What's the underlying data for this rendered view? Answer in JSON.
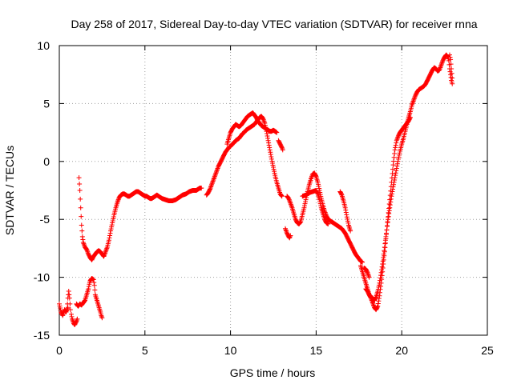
{
  "chart_data": {
    "type": "scatter",
    "title": "Day 258 of 2017, Sidereal Day-to-day VTEC variation (SDTVAR) for receiver rnna",
    "xlabel": "GPS time / hours",
    "ylabel": "SDTVAR / TECUs",
    "xlim": [
      0,
      25
    ],
    "ylim": [
      -15,
      10
    ],
    "xticks": [
      0,
      5,
      10,
      15,
      20,
      25
    ],
    "yticks": [
      -15,
      -10,
      -5,
      0,
      5,
      10
    ],
    "xtick_labels": [
      "0",
      "5",
      "10",
      "15",
      "20",
      "25"
    ],
    "ytick_labels": [
      "-15",
      "-10",
      "-5",
      "0",
      "5",
      "10"
    ],
    "grid": true,
    "marker": "+",
    "color": "#ff0000",
    "segments": [
      [
        [
          0.0,
          -12.3
        ],
        [
          0.1,
          -13.0
        ],
        [
          0.2,
          -13.3
        ],
        [
          0.3,
          -12.8
        ],
        [
          0.4,
          -13.0
        ],
        [
          0.5,
          -12.6
        ]
      ],
      [
        [
          0.45,
          -12.8
        ],
        [
          0.5,
          -11.8
        ],
        [
          0.55,
          -11.2
        ],
        [
          0.6,
          -11.8
        ],
        [
          0.65,
          -12.8
        ]
      ],
      [
        [
          0.7,
          -13.2
        ],
        [
          0.75,
          -13.6
        ],
        [
          0.8,
          -13.8
        ],
        [
          0.85,
          -14.0
        ],
        [
          0.9,
          -14.1
        ],
        [
          1.0,
          -13.8
        ],
        [
          1.05,
          -13.6
        ]
      ],
      [
        [
          1.0,
          -12.3
        ],
        [
          1.1,
          -12.5
        ],
        [
          1.2,
          -12.3
        ],
        [
          1.3,
          -12.4
        ],
        [
          1.4,
          -12.2
        ],
        [
          1.5,
          -12.0
        ],
        [
          1.6,
          -11.5
        ],
        [
          1.7,
          -11.0
        ],
        [
          1.75,
          -10.6
        ],
        [
          1.8,
          -10.3
        ],
        [
          1.9,
          -10.1
        ],
        [
          2.0,
          -10.2
        ],
        [
          2.05,
          -10.7
        ],
        [
          2.1,
          -11.5
        ],
        [
          2.2,
          -12.0
        ],
        [
          2.3,
          -12.5
        ],
        [
          2.4,
          -13.0
        ],
        [
          2.45,
          -13.3
        ],
        [
          2.5,
          -13.5
        ]
      ],
      [
        [
          1.15,
          -1.4
        ],
        [
          1.2,
          -2.5
        ],
        [
          1.25,
          -4.0
        ],
        [
          1.3,
          -5.5
        ],
        [
          1.35,
          -6.5
        ],
        [
          1.4,
          -7.0
        ],
        [
          1.5,
          -7.4
        ],
        [
          1.6,
          -7.6
        ],
        [
          1.7,
          -8.0
        ],
        [
          1.8,
          -8.3
        ],
        [
          1.9,
          -8.5
        ],
        [
          2.0,
          -8.2
        ],
        [
          2.1,
          -8.0
        ],
        [
          2.2,
          -7.8
        ],
        [
          2.3,
          -7.7
        ],
        [
          2.4,
          -7.8
        ],
        [
          2.5,
          -8.0
        ],
        [
          2.6,
          -8.2
        ],
        [
          2.7,
          -7.8
        ],
        [
          2.8,
          -7.4
        ],
        [
          2.9,
          -6.8
        ],
        [
          3.0,
          -6.0
        ],
        [
          3.1,
          -5.3
        ],
        [
          3.2,
          -4.6
        ],
        [
          3.3,
          -4.0
        ],
        [
          3.4,
          -3.5
        ],
        [
          3.5,
          -3.1
        ],
        [
          3.6,
          -2.9
        ],
        [
          3.7,
          -2.8
        ],
        [
          3.8,
          -2.8
        ],
        [
          3.9,
          -2.9
        ],
        [
          4.0,
          -3.0
        ],
        [
          4.1,
          -3.0
        ],
        [
          4.2,
          -2.9
        ],
        [
          4.3,
          -2.8
        ],
        [
          4.4,
          -2.7
        ],
        [
          4.5,
          -2.6
        ],
        [
          4.6,
          -2.6
        ],
        [
          4.7,
          -2.7
        ],
        [
          4.8,
          -2.8
        ],
        [
          4.9,
          -2.9
        ],
        [
          5.0,
          -3.0
        ],
        [
          5.1,
          -3.0
        ],
        [
          5.2,
          -3.1
        ],
        [
          5.3,
          -3.2
        ],
        [
          5.4,
          -3.2
        ],
        [
          5.5,
          -3.1
        ],
        [
          5.6,
          -3.0
        ],
        [
          5.7,
          -2.9
        ],
        [
          5.8,
          -3.0
        ],
        [
          5.9,
          -3.1
        ],
        [
          6.0,
          -3.2
        ],
        [
          6.2,
          -3.3
        ],
        [
          6.4,
          -3.4
        ],
        [
          6.6,
          -3.4
        ],
        [
          6.8,
          -3.3
        ],
        [
          7.0,
          -3.1
        ],
        [
          7.2,
          -2.9
        ],
        [
          7.4,
          -2.8
        ],
        [
          7.6,
          -2.6
        ],
        [
          7.8,
          -2.5
        ],
        [
          8.0,
          -2.5
        ],
        [
          8.1,
          -2.4
        ],
        [
          8.2,
          -2.3
        ],
        [
          8.3,
          -2.3
        ]
      ],
      [
        [
          8.6,
          -2.9
        ],
        [
          8.7,
          -2.7
        ],
        [
          8.8,
          -2.4
        ],
        [
          8.9,
          -2.0
        ],
        [
          9.0,
          -1.6
        ],
        [
          9.1,
          -1.2
        ],
        [
          9.2,
          -0.8
        ],
        [
          9.3,
          -0.4
        ],
        [
          9.4,
          -0.1
        ],
        [
          9.5,
          0.2
        ],
        [
          9.6,
          0.5
        ],
        [
          9.7,
          0.8
        ],
        [
          9.8,
          1.0
        ],
        [
          9.9,
          1.2
        ],
        [
          10.0,
          1.3
        ],
        [
          10.1,
          1.5
        ],
        [
          10.2,
          1.6
        ],
        [
          10.3,
          1.8
        ],
        [
          10.4,
          1.9
        ],
        [
          10.5,
          2.0
        ],
        [
          10.6,
          2.2
        ],
        [
          10.7,
          2.4
        ],
        [
          10.8,
          2.5
        ],
        [
          10.9,
          2.7
        ],
        [
          11.0,
          2.8
        ],
        [
          11.1,
          2.9
        ],
        [
          11.2,
          3.0
        ],
        [
          11.3,
          3.1
        ],
        [
          11.4,
          3.2
        ],
        [
          11.5,
          3.4
        ],
        [
          11.6,
          3.6
        ],
        [
          11.7,
          3.8
        ],
        [
          11.8,
          3.9
        ],
        [
          11.9,
          3.7
        ],
        [
          12.0,
          3.3
        ],
        [
          12.1,
          2.6
        ],
        [
          12.2,
          1.8
        ],
        [
          12.3,
          1.0
        ],
        [
          12.4,
          0.2
        ],
        [
          12.5,
          -0.5
        ],
        [
          12.6,
          -1.2
        ],
        [
          12.7,
          -1.8
        ],
        [
          12.8,
          -2.3
        ],
        [
          12.9,
          -2.8
        ],
        [
          13.0,
          -3.0
        ]
      ],
      [
        [
          9.8,
          1.5
        ],
        [
          9.9,
          2.0
        ],
        [
          10.0,
          2.5
        ],
        [
          10.1,
          2.8
        ],
        [
          10.2,
          3.0
        ],
        [
          10.3,
          3.2
        ],
        [
          10.4,
          3.1
        ],
        [
          10.5,
          3.0
        ],
        [
          10.6,
          3.1
        ],
        [
          10.7,
          3.3
        ],
        [
          10.8,
          3.5
        ],
        [
          10.9,
          3.7
        ],
        [
          11.0,
          3.9
        ],
        [
          11.1,
          4.0
        ],
        [
          11.2,
          4.1
        ],
        [
          11.3,
          4.2
        ],
        [
          11.4,
          4.0
        ],
        [
          11.5,
          3.8
        ],
        [
          11.6,
          3.5
        ],
        [
          11.7,
          3.3
        ],
        [
          11.8,
          3.1
        ],
        [
          11.9,
          3.0
        ],
        [
          12.0,
          2.9
        ],
        [
          12.1,
          2.8
        ],
        [
          12.2,
          2.7
        ],
        [
          12.3,
          2.6
        ],
        [
          12.4,
          2.6
        ],
        [
          12.5,
          2.7
        ],
        [
          12.6,
          2.6
        ],
        [
          12.7,
          2.5
        ]
      ],
      [
        [
          12.8,
          1.8
        ],
        [
          12.9,
          1.5
        ],
        [
          13.0,
          1.2
        ],
        [
          13.05,
          1.0
        ]
      ],
      [
        [
          13.2,
          -5.8
        ],
        [
          13.3,
          -6.2
        ],
        [
          13.4,
          -6.5
        ],
        [
          13.45,
          -6.6
        ],
        [
          13.5,
          -6.4
        ]
      ],
      [
        [
          13.3,
          -3.0
        ],
        [
          13.4,
          -3.2
        ],
        [
          13.5,
          -3.6
        ],
        [
          13.6,
          -4.0
        ],
        [
          13.7,
          -4.5
        ],
        [
          13.8,
          -5.0
        ],
        [
          13.9,
          -5.3
        ],
        [
          14.0,
          -5.4
        ],
        [
          14.1,
          -5.2
        ],
        [
          14.2,
          -4.6
        ],
        [
          14.3,
          -4.0
        ],
        [
          14.4,
          -3.3
        ],
        [
          14.5,
          -2.6
        ],
        [
          14.6,
          -2.0
        ],
        [
          14.7,
          -1.5
        ],
        [
          14.8,
          -1.1
        ],
        [
          14.9,
          -1.0
        ],
        [
          15.0,
          -1.3
        ],
        [
          15.1,
          -1.8
        ],
        [
          15.2,
          -2.5
        ],
        [
          15.3,
          -3.2
        ],
        [
          15.4,
          -3.8
        ],
        [
          15.5,
          -4.3
        ],
        [
          15.6,
          -4.7
        ],
        [
          15.7,
          -5.0
        ],
        [
          15.8,
          -5.1
        ],
        [
          15.9,
          -5.2
        ],
        [
          16.0,
          -5.3
        ],
        [
          16.1,
          -5.4
        ],
        [
          16.2,
          -5.5
        ],
        [
          16.3,
          -5.6
        ],
        [
          16.4,
          -5.7
        ],
        [
          16.5,
          -5.8
        ],
        [
          16.6,
          -6.0
        ],
        [
          16.7,
          -6.2
        ],
        [
          16.8,
          -6.5
        ],
        [
          16.9,
          -6.8
        ],
        [
          17.0,
          -7.1
        ],
        [
          17.1,
          -7.4
        ],
        [
          17.2,
          -7.7
        ],
        [
          17.3,
          -8.0
        ],
        [
          17.4,
          -8.2
        ],
        [
          17.5,
          -8.4
        ],
        [
          17.6,
          -8.6
        ],
        [
          17.7,
          -8.7
        ]
      ],
      [
        [
          14.2,
          -3.0
        ],
        [
          14.4,
          -2.9
        ],
        [
          14.6,
          -2.7
        ],
        [
          14.8,
          -2.6
        ],
        [
          15.0,
          -2.5
        ],
        [
          15.1,
          -2.8
        ],
        [
          15.2,
          -3.3
        ],
        [
          15.3,
          -4.0
        ],
        [
          15.4,
          -4.5
        ],
        [
          15.5,
          -5.0
        ],
        [
          15.6,
          -5.3
        ],
        [
          15.7,
          -5.4
        ]
      ],
      [
        [
          16.4,
          -2.6
        ],
        [
          16.5,
          -2.9
        ],
        [
          16.6,
          -3.4
        ],
        [
          16.7,
          -4.0
        ],
        [
          16.8,
          -4.8
        ],
        [
          16.9,
          -5.5
        ],
        [
          17.0,
          -6.0
        ]
      ],
      [
        [
          17.8,
          -9.2
        ],
        [
          17.9,
          -9.3
        ],
        [
          18.0,
          -9.6
        ],
        [
          18.1,
          -10.0
        ]
      ],
      [
        [
          17.6,
          -9.0
        ],
        [
          17.7,
          -9.5
        ],
        [
          17.8,
          -10.0
        ],
        [
          17.9,
          -10.5
        ],
        [
          18.0,
          -11.0
        ],
        [
          18.1,
          -11.5
        ],
        [
          18.2,
          -11.8
        ],
        [
          18.3,
          -12.2
        ],
        [
          18.4,
          -12.6
        ],
        [
          18.5,
          -12.8
        ],
        [
          18.6,
          -12.5
        ],
        [
          18.7,
          -11.6
        ],
        [
          18.8,
          -10.5
        ],
        [
          18.9,
          -9.2
        ],
        [
          19.0,
          -7.8
        ],
        [
          19.1,
          -6.3
        ],
        [
          19.2,
          -4.8
        ],
        [
          19.3,
          -3.3
        ],
        [
          19.4,
          -1.8
        ],
        [
          19.5,
          -0.3
        ],
        [
          19.6,
          1.0
        ],
        [
          19.7,
          1.8
        ],
        [
          19.8,
          2.2
        ],
        [
          19.9,
          2.5
        ],
        [
          20.0,
          2.7
        ],
        [
          20.1,
          2.9
        ],
        [
          20.2,
          3.1
        ],
        [
          20.3,
          3.3
        ],
        [
          20.4,
          3.5
        ],
        [
          20.5,
          3.8
        ]
      ],
      [
        [
          17.9,
          -11.0
        ],
        [
          18.0,
          -11.2
        ],
        [
          18.1,
          -11.5
        ],
        [
          18.2,
          -11.7
        ],
        [
          18.3,
          -11.8
        ],
        [
          18.4,
          -12.0
        ],
        [
          18.5,
          -11.7
        ],
        [
          18.6,
          -11.2
        ],
        [
          18.7,
          -10.5
        ],
        [
          18.8,
          -9.6
        ],
        [
          18.9,
          -8.6
        ],
        [
          19.0,
          -7.4
        ],
        [
          19.1,
          -6.2
        ],
        [
          19.2,
          -5.0
        ],
        [
          19.3,
          -4.0
        ],
        [
          19.4,
          -3.0
        ],
        [
          19.5,
          -2.2
        ],
        [
          19.6,
          -1.4
        ],
        [
          19.7,
          -0.6
        ],
        [
          19.8,
          0.2
        ],
        [
          19.9,
          0.9
        ],
        [
          20.0,
          1.5
        ],
        [
          20.1,
          2.0
        ],
        [
          20.2,
          2.6
        ],
        [
          20.3,
          3.2
        ],
        [
          20.4,
          3.8
        ],
        [
          20.5,
          4.3
        ],
        [
          20.6,
          4.9
        ],
        [
          20.7,
          5.3
        ],
        [
          20.8,
          5.7
        ],
        [
          20.9,
          6.0
        ],
        [
          21.0,
          6.2
        ],
        [
          21.1,
          6.3
        ],
        [
          21.2,
          6.4
        ],
        [
          21.3,
          6.5
        ],
        [
          21.4,
          6.7
        ],
        [
          21.5,
          7.0
        ],
        [
          21.6,
          7.3
        ],
        [
          21.7,
          7.6
        ],
        [
          21.8,
          7.9
        ],
        [
          21.9,
          8.1
        ],
        [
          22.0,
          8.0
        ],
        [
          22.1,
          7.8
        ],
        [
          22.2,
          7.9
        ],
        [
          22.3,
          8.3
        ],
        [
          22.4,
          8.7
        ],
        [
          22.5,
          9.0
        ],
        [
          22.6,
          9.2
        ],
        [
          22.7,
          9.0
        ],
        [
          22.75,
          8.7
        ],
        [
          22.8,
          8.0
        ],
        [
          22.85,
          7.5
        ],
        [
          22.9,
          7.0
        ],
        [
          22.95,
          6.7
        ]
      ],
      [
        [
          22.8,
          9.2
        ],
        [
          22.85,
          8.8
        ],
        [
          22.9,
          8.0
        ],
        [
          22.95,
          7.2
        ]
      ]
    ]
  }
}
